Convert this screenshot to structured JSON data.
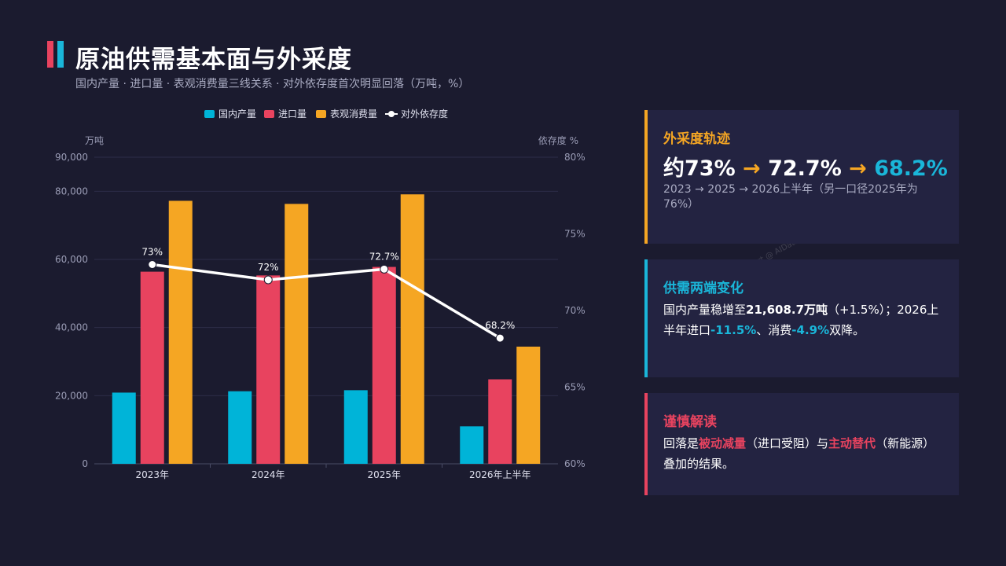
{
  "header": {
    "title": "原油供需基本面与外采度",
    "subtitle": "国内产量 · 进口量 · 表观消费量三线关系 · 对外依存度首次明显回落（万吨，%）",
    "watermark": "Report @ AIDataSlide.com"
  },
  "colors": {
    "background": "#1b1b2f",
    "card": "#232341",
    "domestic": "#00b4d8",
    "import": "#e8435f",
    "consumption": "#f5a623",
    "dependence": "#ffffff"
  },
  "chart_data": {
    "type": "bar",
    "categories": [
      "2023年",
      "2024年",
      "2025年",
      "2026年上半年"
    ],
    "series": [
      {
        "name": "国内产量",
        "kind": "bar",
        "axis": "left",
        "values": [
          20900,
          21300,
          21608.7,
          11000
        ]
      },
      {
        "name": "进口量",
        "kind": "bar",
        "axis": "left",
        "values": [
          56400,
          55300,
          57800,
          24800
        ]
      },
      {
        "name": "表观消费量",
        "kind": "bar",
        "axis": "left",
        "values": [
          77200,
          76300,
          79100,
          34400
        ]
      },
      {
        "name": "对外依存度",
        "kind": "line",
        "axis": "right",
        "values": [
          73,
          72,
          72.7,
          68.2
        ],
        "labels": [
          "73%",
          "72%",
          "72.7%",
          "68.2%"
        ]
      }
    ],
    "y_left": {
      "unit": "万吨",
      "min": 0,
      "max": 90000,
      "ticks": [
        0,
        20000,
        40000,
        60000,
        80000,
        90000
      ],
      "tick_labels": [
        "0",
        "20,000",
        "40,000",
        "60,000",
        "80,000",
        "90,000"
      ]
    },
    "y_right": {
      "unit": "依存度 %",
      "min": 60,
      "max": 80,
      "ticks": [
        60,
        65,
        70,
        75,
        80
      ],
      "tick_labels": [
        "60%",
        "65%",
        "70%",
        "75%",
        "80%"
      ]
    },
    "grid": true,
    "legend_position": "top-center"
  },
  "cards": {
    "trajectory": {
      "title": "外采度轨迹",
      "value_1": "约73%",
      "arrow": "→",
      "value_2": "72.7%",
      "value_3": "68.2%",
      "note": "2023 → 2025 → 2026上半年（另一口径2025年为76%）"
    },
    "supply_demand": {
      "title": "供需两端变化",
      "t1": "国内产量稳增至",
      "b1": "21,608.7万吨",
      "t2": "（+1.5%）；2026上半年进口",
      "h1": "-11.5%",
      "t3": "、消费",
      "h2": "-4.9%",
      "t4": "双降。"
    },
    "caution": {
      "title": "谨慎解读",
      "t1": "回落是",
      "h1": "被动减量",
      "t2": "（进口受阻）与",
      "h2": "主动替代",
      "t3": "（新能源）叠加的结果。"
    }
  }
}
